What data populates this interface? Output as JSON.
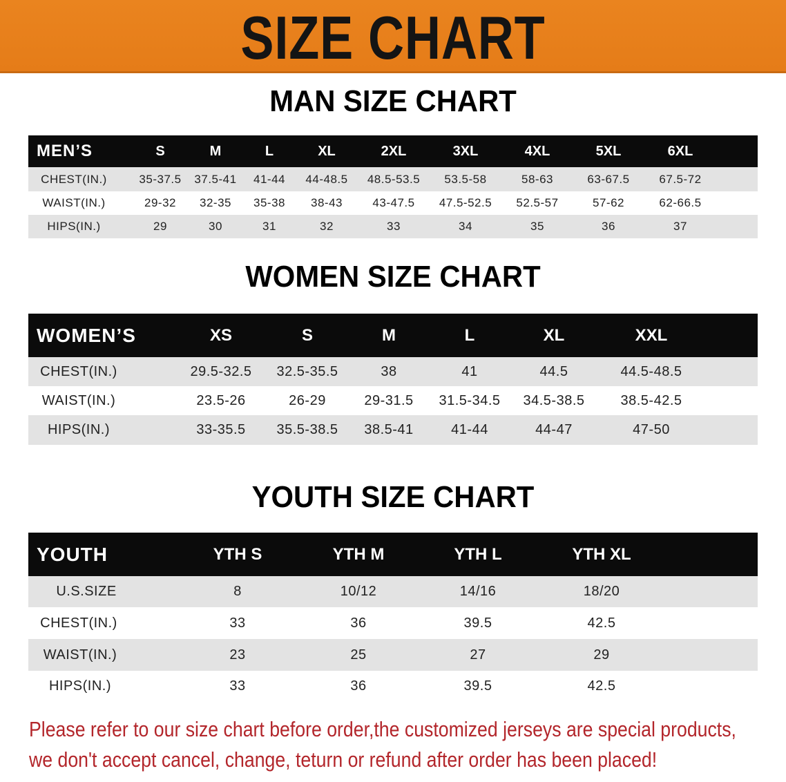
{
  "banner": {
    "title": "SIZE CHART",
    "color": "#e8801e"
  },
  "men": {
    "title": "MAN SIZE CHART",
    "header": [
      "MEN’S",
      "S",
      "M",
      "L",
      "XL",
      "2XL",
      "3XL",
      "4XL",
      "5XL",
      "6XL"
    ],
    "rows": [
      [
        "CHEST(IN.)",
        "35-37.5",
        "37.5-41",
        "41-44",
        "44-48.5",
        "48.5-53.5",
        "53.5-58",
        "58-63",
        "63-67.5",
        "67.5-72"
      ],
      [
        "WAIST(IN.)",
        "29-32",
        "32-35",
        "35-38",
        "38-43",
        "43-47.5",
        "47.5-52.5",
        "52.5-57",
        "57-62",
        "62-66.5"
      ],
      [
        "HIPS(IN.)",
        "29",
        "30",
        "31",
        "32",
        "33",
        "34",
        "35",
        "36",
        "37"
      ]
    ]
  },
  "women": {
    "title": "WOMEN SIZE CHART",
    "header": [
      "WOMEN’S",
      "XS",
      "S",
      "M",
      "L",
      "XL",
      "XXL"
    ],
    "rows": [
      [
        "CHEST(IN.)",
        "29.5-32.5",
        "32.5-35.5",
        "38",
        "41",
        "44.5",
        "44.5-48.5"
      ],
      [
        "WAIST(IN.)",
        "23.5-26",
        "26-29",
        "29-31.5",
        "31.5-34.5",
        "34.5-38.5",
        "38.5-42.5"
      ],
      [
        "HIPS(IN.)",
        "33-35.5",
        "35.5-38.5",
        "38.5-41",
        "41-44",
        "44-47",
        "47-50"
      ]
    ]
  },
  "youth": {
    "title": "YOUTH SIZE CHART",
    "header": [
      "YOUTH",
      "YTH S",
      "YTH M",
      "YTH L",
      "YTH XL"
    ],
    "rows": [
      [
        "U.S.SIZE",
        "8",
        "10/12",
        "14/16",
        "18/20"
      ],
      [
        "CHEST(IN.)",
        "33",
        "36",
        "39.5",
        "42.5"
      ],
      [
        "WAIST(IN.)",
        "23",
        "25",
        "27",
        "29"
      ],
      [
        "HIPS(IN.)",
        "33",
        "36",
        "39.5",
        "42.5"
      ]
    ]
  },
  "notice": {
    "line1": "Please refer to our size chart before order,the customized jerseys are special products,",
    "line2": "we don't accept cancel, change, teturn or refund after order has been placed!",
    "color": "#b3262b"
  }
}
